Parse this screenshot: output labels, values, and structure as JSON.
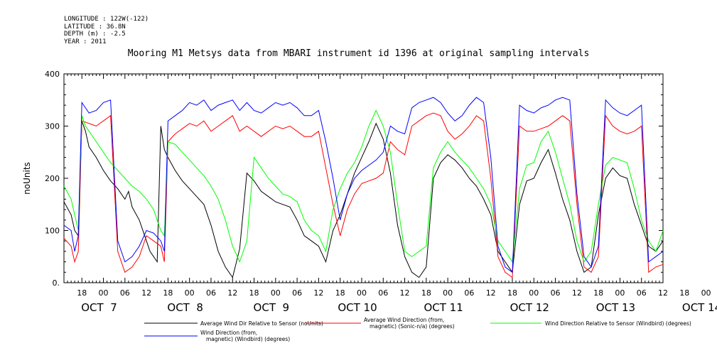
{
  "meta": {
    "longitude": "LONGITUDE : 122W(-122)",
    "latitude": "LATITUDE : 36.8N",
    "depth": "DEPTH (m) : -2.5",
    "year": "YEAR : 2011"
  },
  "chart_data": {
    "type": "line",
    "title": "Mooring M1 Metsys data from MBARI instrument id 1396 at original sampling intervals",
    "ylabel": "noUnits",
    "xlabel": "",
    "ylim": [
      0,
      400
    ],
    "y_ticks": [
      "0.",
      "100",
      "200",
      "300",
      "400"
    ],
    "x_range_hours": [
      -11,
      156
    ],
    "hour_tick_labels": [
      "18",
      "00",
      "06",
      "12",
      "18",
      "00",
      "06",
      "12",
      "18",
      "00",
      "06",
      "12",
      "18",
      "00",
      "06",
      "12",
      "18",
      "00",
      "06",
      "12",
      "18",
      "00",
      "06",
      "12",
      "18",
      "00",
      "06",
      "12",
      "18",
      "00",
      "06",
      "12"
    ],
    "day_labels": [
      "OCT  7",
      "OCT  8",
      "OCT  9",
      "OCT 10",
      "OCT 11",
      "OCT 12",
      "OCT 13",
      "OCT 14"
    ],
    "grid": false,
    "legend_position": "bottom",
    "series": [
      {
        "name": "Average Wind Dir Relative to Sensor (noUnits)",
        "color": "#000000",
        "x": [
          -11,
          -9,
          -8,
          -7,
          -6,
          -5,
          -4,
          -2,
          0,
          2,
          4,
          6,
          7,
          8,
          10,
          12,
          13,
          14,
          15,
          16,
          17,
          18,
          20,
          22,
          24,
          26,
          28,
          30,
          32,
          34,
          36,
          38,
          40,
          42,
          44,
          46,
          48,
          50,
          52,
          54,
          56,
          58,
          60,
          62,
          64,
          66,
          68,
          70,
          72,
          74,
          76,
          78,
          80,
          82,
          84,
          86,
          88,
          90,
          92,
          94,
          96,
          98,
          100,
          102,
          104,
          106,
          108,
          110,
          112,
          114,
          116,
          118,
          120,
          122,
          124,
          126,
          128,
          130,
          132,
          134,
          136,
          138,
          140,
          142,
          144,
          146,
          148,
          150,
          152,
          154,
          156
        ],
        "y": [
          155,
          130,
          100,
          90,
          310,
          290,
          260,
          240,
          215,
          195,
          180,
          160,
          175,
          145,
          120,
          80,
          60,
          50,
          40,
          300,
          255,
          240,
          215,
          195,
          180,
          165,
          150,
          110,
          60,
          30,
          10,
          65,
          210,
          195,
          175,
          165,
          155,
          150,
          145,
          120,
          90,
          80,
          70,
          40,
          100,
          130,
          170,
          210,
          240,
          270,
          305,
          275,
          210,
          110,
          50,
          20,
          10,
          30,
          200,
          230,
          245,
          235,
          220,
          200,
          185,
          160,
          130,
          60,
          40,
          20,
          150,
          195,
          200,
          230,
          255,
          210,
          160,
          120,
          60,
          20,
          30,
          130,
          200,
          220,
          205,
          200,
          150,
          110,
          70,
          60,
          80
        ]
      },
      {
        "name": "Average Wind Direction (from, magnetic) (Sonic-n/a) (degrees)",
        "color": "#ff0000",
        "x": [
          -11,
          -9,
          -8,
          -7,
          -6,
          -4,
          -2,
          0,
          2,
          4,
          6,
          8,
          10,
          12,
          14,
          16,
          17,
          18,
          20,
          22,
          24,
          26,
          28,
          30,
          32,
          34,
          36,
          38,
          40,
          42,
          44,
          46,
          48,
          50,
          52,
          54,
          56,
          58,
          60,
          62,
          64,
          66,
          68,
          70,
          72,
          74,
          76,
          78,
          80,
          82,
          84,
          86,
          88,
          90,
          92,
          94,
          96,
          98,
          100,
          102,
          104,
          106,
          108,
          110,
          112,
          114,
          116,
          118,
          120,
          122,
          124,
          126,
          128,
          130,
          132,
          134,
          136,
          138,
          140,
          142,
          144,
          146,
          148,
          150,
          152,
          154,
          156
        ],
        "y": [
          85,
          70,
          40,
          60,
          310,
          305,
          300,
          310,
          320,
          60,
          20,
          30,
          50,
          90,
          80,
          70,
          40,
          270,
          285,
          295,
          305,
          300,
          310,
          290,
          300,
          310,
          320,
          290,
          300,
          290,
          280,
          290,
          300,
          295,
          300,
          290,
          280,
          280,
          290,
          220,
          150,
          90,
          140,
          170,
          190,
          195,
          200,
          210,
          270,
          255,
          245,
          300,
          310,
          320,
          325,
          320,
          290,
          275,
          285,
          300,
          320,
          310,
          200,
          50,
          20,
          10,
          300,
          290,
          290,
          295,
          300,
          310,
          320,
          310,
          150,
          30,
          20,
          50,
          320,
          300,
          290,
          285,
          290,
          300,
          20,
          30,
          35
        ]
      },
      {
        "name": "Wind Direction Relative to Sensor (Windbird) (degrees)",
        "color": "#00ff00",
        "x": [
          -11,
          -9,
          -8,
          -7,
          -6,
          -5,
          -4,
          -2,
          0,
          2,
          4,
          6,
          8,
          10,
          12,
          14,
          15,
          16,
          17,
          18,
          20,
          22,
          24,
          26,
          28,
          30,
          32,
          34,
          36,
          38,
          40,
          42,
          44,
          46,
          48,
          50,
          52,
          54,
          56,
          58,
          60,
          62,
          64,
          66,
          68,
          70,
          72,
          74,
          76,
          78,
          80,
          82,
          84,
          86,
          88,
          90,
          92,
          94,
          96,
          98,
          100,
          102,
          104,
          106,
          108,
          110,
          112,
          114,
          116,
          118,
          120,
          122,
          124,
          126,
          128,
          130,
          132,
          134,
          136,
          138,
          140,
          142,
          144,
          146,
          148,
          150,
          152,
          154,
          156
        ],
        "y": [
          185,
          160,
          130,
          100,
          320,
          300,
          290,
          270,
          250,
          230,
          215,
          200,
          185,
          175,
          160,
          140,
          120,
          100,
          90,
          270,
          265,
          250,
          235,
          220,
          205,
          185,
          160,
          120,
          70,
          40,
          80,
          240,
          220,
          200,
          185,
          170,
          165,
          155,
          120,
          100,
          90,
          60,
          140,
          180,
          210,
          230,
          260,
          300,
          330,
          300,
          250,
          150,
          60,
          50,
          60,
          70,
          220,
          250,
          270,
          250,
          235,
          220,
          200,
          180,
          150,
          80,
          60,
          40,
          180,
          225,
          230,
          270,
          290,
          250,
          200,
          150,
          80,
          40,
          60,
          150,
          225,
          240,
          235,
          230,
          180,
          120,
          80,
          60,
          100
        ]
      },
      {
        "name": "Wind Direction (from, magnetic) (Windbird) (degrees)",
        "color": "#0000ff",
        "x": [
          -11,
          -9,
          -8,
          -7,
          -6,
          -4,
          -2,
          0,
          2,
          4,
          6,
          8,
          10,
          12,
          14,
          16,
          17,
          18,
          20,
          22,
          24,
          26,
          28,
          30,
          32,
          34,
          36,
          38,
          40,
          42,
          44,
          46,
          48,
          50,
          52,
          54,
          56,
          58,
          60,
          62,
          64,
          66,
          68,
          70,
          72,
          74,
          76,
          78,
          80,
          82,
          84,
          86,
          88,
          90,
          92,
          94,
          96,
          98,
          100,
          102,
          104,
          106,
          108,
          110,
          112,
          114,
          116,
          118,
          120,
          122,
          124,
          126,
          128,
          130,
          132,
          134,
          136,
          138,
          140,
          142,
          144,
          146,
          148,
          150,
          152,
          154,
          156
        ],
        "y": [
          110,
          100,
          60,
          90,
          345,
          325,
          330,
          345,
          350,
          80,
          40,
          50,
          70,
          100,
          95,
          80,
          60,
          310,
          320,
          330,
          345,
          340,
          350,
          330,
          340,
          345,
          350,
          330,
          345,
          330,
          325,
          335,
          345,
          340,
          345,
          335,
          320,
          320,
          330,
          270,
          200,
          120,
          170,
          200,
          215,
          225,
          235,
          250,
          300,
          290,
          285,
          335,
          345,
          350,
          355,
          345,
          325,
          310,
          320,
          340,
          355,
          345,
          240,
          70,
          30,
          20,
          340,
          330,
          325,
          335,
          340,
          350,
          355,
          350,
          170,
          50,
          30,
          70,
          350,
          335,
          325,
          320,
          330,
          340,
          40,
          50,
          60
        ]
      }
    ]
  }
}
